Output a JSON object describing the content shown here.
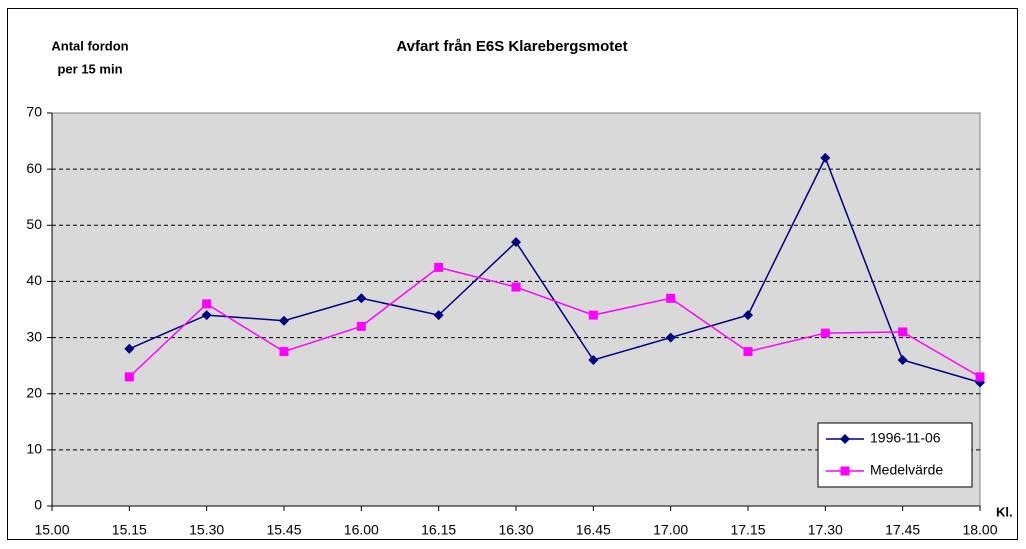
{
  "chart_data": {
    "type": "line",
    "title": "Avfart från E6S Klarebergsmotet",
    "y_label": [
      "Antal fordon",
      "per 15 min"
    ],
    "x_label": "Kl.",
    "categories": [
      "15.00",
      "15.15",
      "15.30",
      "15.45",
      "16.00",
      "16.15",
      "16.30",
      "16.45",
      "17.00",
      "17.15",
      "17.30",
      "17.45",
      "18.00"
    ],
    "series": [
      {
        "name": "1996-11-06",
        "color": "#000080",
        "marker": "diamond",
        "values": [
          null,
          28,
          34,
          33,
          37,
          34,
          47,
          26,
          30,
          34,
          62,
          26,
          22
        ]
      },
      {
        "name": "Medelvärde",
        "color": "#ff00ff",
        "marker": "square",
        "values": [
          null,
          23,
          36,
          27.5,
          32,
          42.5,
          39,
          34,
          37,
          27.5,
          30.8,
          31,
          23
        ]
      }
    ],
    "ylim": [
      0,
      70
    ],
    "yticks": [
      0,
      10,
      20,
      30,
      40,
      50,
      60,
      70
    ],
    "grid": true,
    "legend": "lower right"
  }
}
